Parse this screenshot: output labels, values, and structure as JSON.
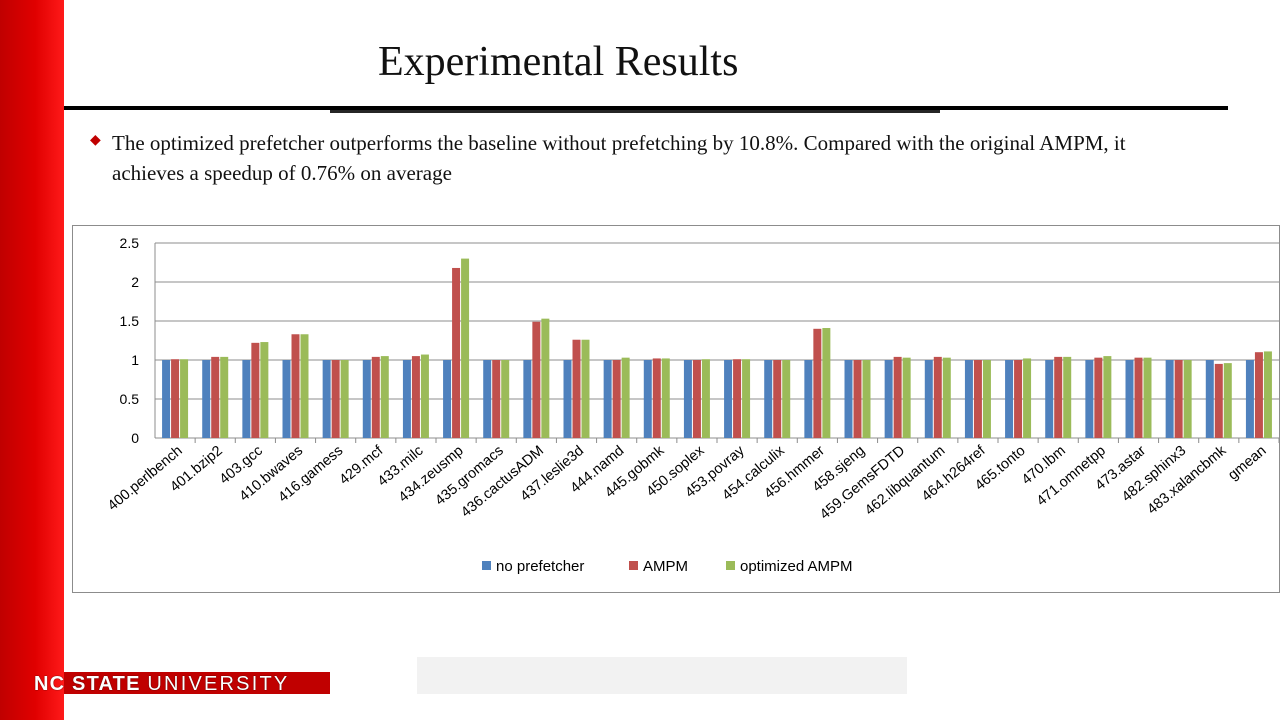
{
  "slide": {
    "title": "Experimental Results",
    "bullet": "The optimized prefetcher outperforms the baseline without prefetching by 10.8%. Compared with the original AMPM, it achieves a speedup of 0.76% on average",
    "footer_brand": "NC STATE",
    "footer_univ": "UNIVERSITY"
  },
  "colors": {
    "no_prefetcher": "#4f81bd",
    "ampm": "#c0504d",
    "optimized_ampm": "#9bbb59",
    "brand_red": "#c00000"
  },
  "chart_data": {
    "type": "bar",
    "title": "",
    "xlabel": "",
    "ylabel": "",
    "ylim": [
      0,
      2.5
    ],
    "yticks": [
      "0",
      "0.5",
      "1",
      "1.5",
      "2",
      "2.5"
    ],
    "grid": true,
    "legend": "bottom",
    "categories": [
      "400.perlbench",
      "401.bzip2",
      "403.gcc",
      "410.bwaves",
      "416.gamess",
      "429.mcf",
      "433.milc",
      "434.zeusmp",
      "435.gromacs",
      "436.cactusADM",
      "437.leslie3d",
      "444.namd",
      "445.gobmk",
      "450.soplex",
      "453.povray",
      "454.calculix",
      "456.hmmer",
      "458.sjeng",
      "459.GemsFDTD",
      "462.libquantum",
      "464.h264ref",
      "465.tonto",
      "470.lbm",
      "471.omnetpp",
      "473.astar",
      "482.sphinx3",
      "483.xalancbmk",
      "gmean"
    ],
    "series": [
      {
        "name": "no prefetcher",
        "values": [
          1,
          1,
          1,
          1,
          1,
          1,
          1,
          1,
          1,
          1,
          1,
          1,
          1,
          1,
          1,
          1,
          1,
          1,
          1,
          1,
          1,
          1,
          1,
          1,
          1,
          1,
          1,
          1
        ]
      },
      {
        "name": "AMPM",
        "values": [
          1.01,
          1.04,
          1.22,
          1.33,
          1.0,
          1.04,
          1.05,
          2.18,
          1.0,
          1.49,
          1.26,
          1.0,
          1.02,
          1.0,
          1.01,
          1.0,
          1.4,
          1.0,
          1.04,
          1.04,
          1.0,
          1.0,
          1.04,
          1.03,
          1.03,
          1.0,
          0.95,
          1.1
        ]
      },
      {
        "name": "optimized AMPM",
        "values": [
          1.01,
          1.04,
          1.23,
          1.33,
          1.0,
          1.05,
          1.07,
          2.3,
          1.0,
          1.53,
          1.26,
          1.03,
          1.02,
          1.01,
          1.01,
          1.0,
          1.41,
          1.0,
          1.03,
          1.03,
          1.0,
          1.02,
          1.04,
          1.05,
          1.03,
          1.0,
          0.96,
          1.11
        ]
      }
    ]
  }
}
